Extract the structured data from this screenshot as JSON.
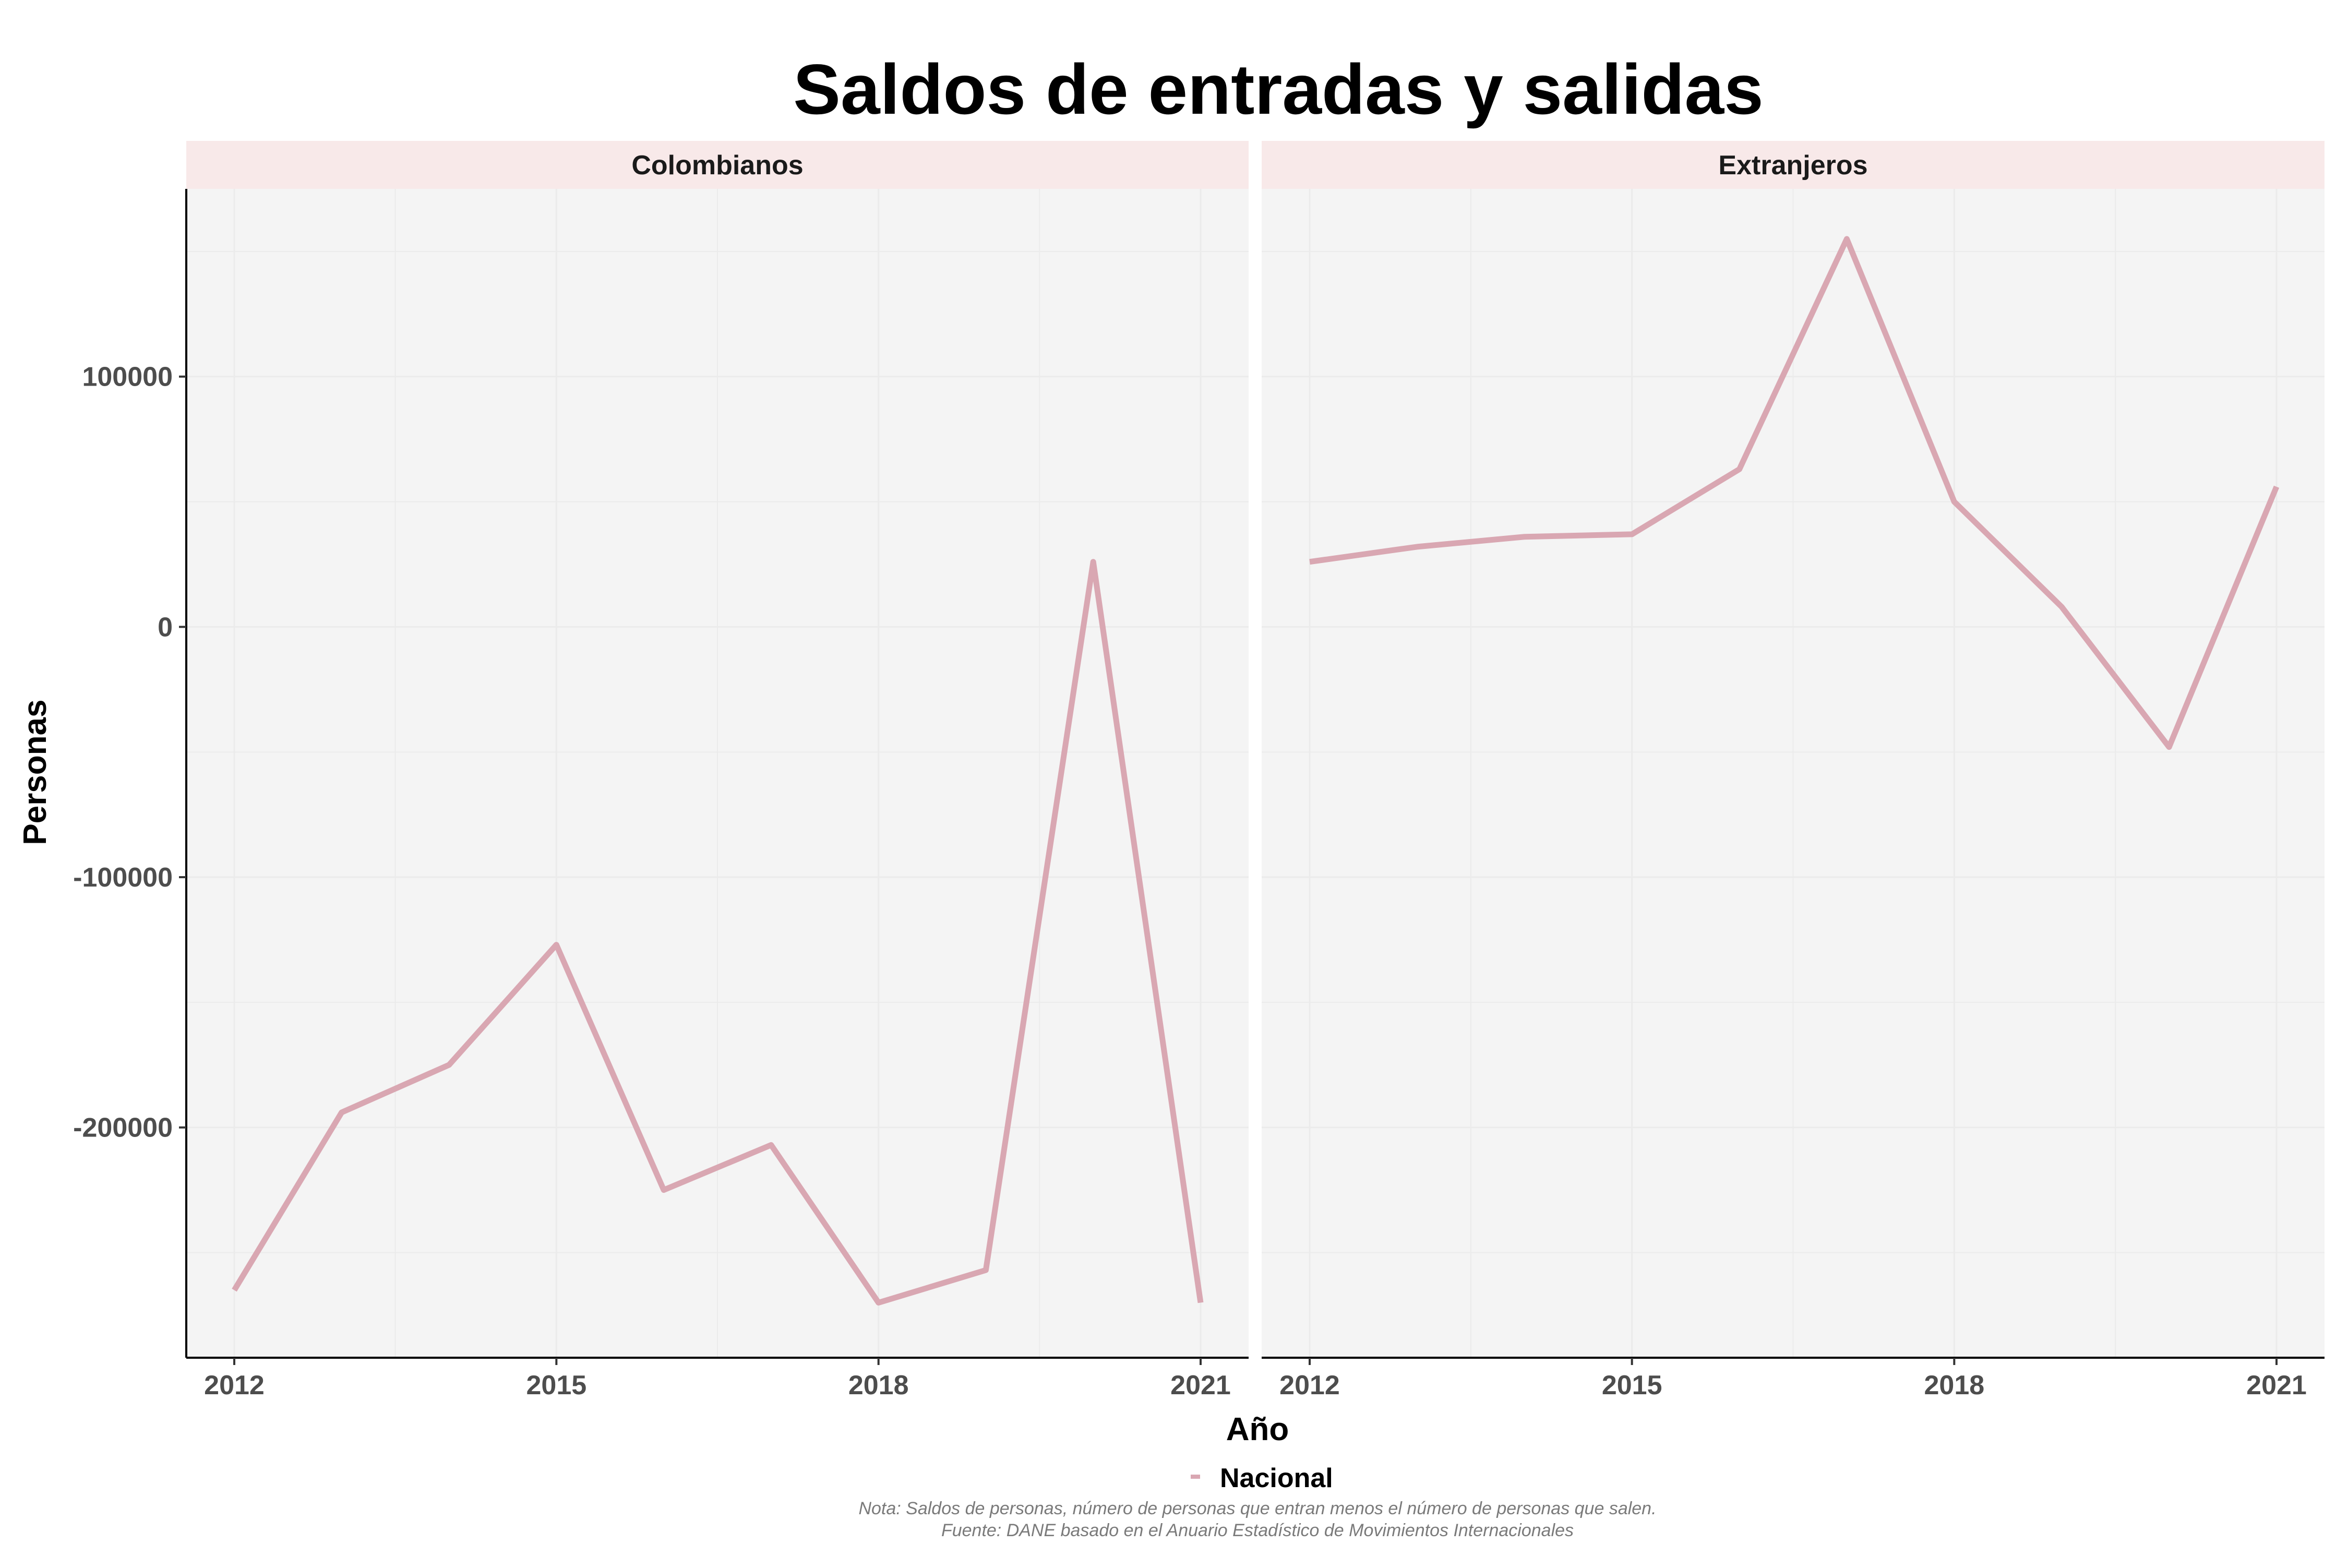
{
  "chart_data": {
    "type": "line",
    "title": "Saldos de entradas y salidas",
    "xlabel": "Año",
    "ylabel": "Personas",
    "x": [
      2012,
      2013,
      2014,
      2015,
      2016,
      2017,
      2018,
      2019,
      2020,
      2021
    ],
    "x_ticks": [
      "2012",
      "2015",
      "2018",
      "2021"
    ],
    "y_ticks": [
      "100000",
      "0",
      "-100000",
      "-200000"
    ],
    "ylim": [
      -292000,
      175000
    ],
    "grid": true,
    "legend_position": "bottom",
    "colors": {
      "line": "#d9a7b2",
      "panel": "#f4f4f4",
      "strip": "#f8e9e9",
      "grid": "#ebebeb"
    },
    "panels": [
      {
        "label": "Colombianos",
        "series": [
          {
            "name": "Nacional",
            "values": [
              -265000,
              -194000,
              -175000,
              -127000,
              -225000,
              -207000,
              -270000,
              -257000,
              26000,
              -270000
            ]
          }
        ]
      },
      {
        "label": "Extranjeros",
        "series": [
          {
            "name": "Nacional",
            "values": [
              26000,
              32000,
              36000,
              37000,
              63000,
              155000,
              50000,
              8000,
              -48000,
              56000
            ]
          }
        ]
      }
    ],
    "legend": [
      "Nacional"
    ],
    "notes": [
      "Nota: Saldos de personas, número de personas que entran menos el número de personas que salen.",
      "Fuente: DANE basado en el Anuario Estadístico de Movimientos Internacionales"
    ]
  }
}
